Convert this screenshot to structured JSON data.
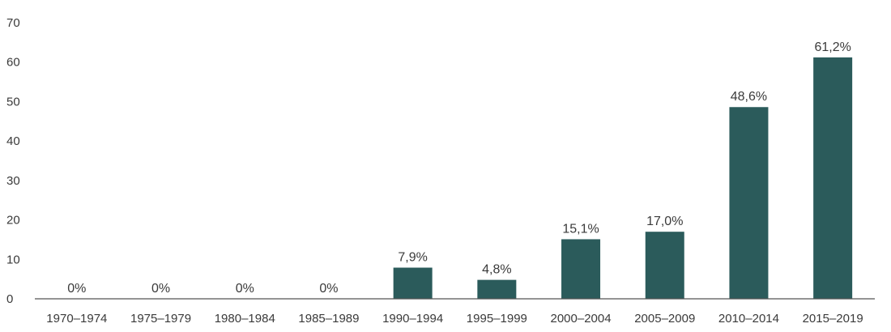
{
  "chart_data": {
    "type": "bar",
    "categories": [
      "1970–1974",
      "1975–1979",
      "1980–1984",
      "1985–1989",
      "1990–1994",
      "1995–1999",
      "2000–2004",
      "2005–2009",
      "2010–2014",
      "2015–2019"
    ],
    "values": [
      0,
      0,
      0,
      0,
      7.9,
      4.8,
      15.1,
      17.0,
      48.6,
      61.2
    ],
    "data_labels": [
      "0%",
      "0%",
      "0%",
      "0%",
      "7,9%",
      "4,8%",
      "15,1%",
      "17,0%",
      "48,6%",
      "61,2%"
    ],
    "title": "",
    "xlabel": "",
    "ylabel": "",
    "ylim": [
      0,
      70
    ],
    "yticks": [
      "0",
      "10",
      "20",
      "30",
      "40",
      "50",
      "60",
      "70"
    ],
    "grid": false,
    "bar_color": "#2b5b5b",
    "axis_color": "#555555"
  }
}
